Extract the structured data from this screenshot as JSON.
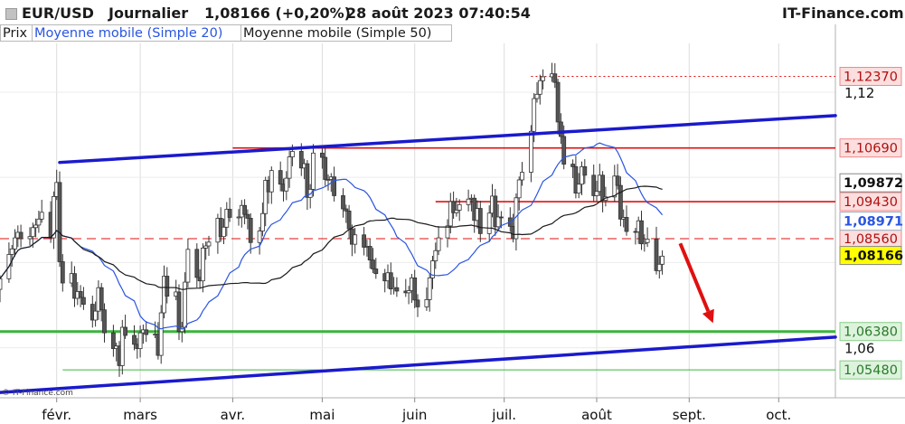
{
  "header": {
    "symbol": "EUR/USD",
    "period": "Journalier",
    "price_change": "1,08166 (+0,20%)",
    "datetime": "28 août 2023 07:40:54",
    "brand": "IT-Finance.com"
  },
  "legend": {
    "price": "Prix",
    "ma20": "Moyenne mobile (Simple 20)",
    "ma50": "Moyenne mobile (Simple 50)"
  },
  "watermark": "© IT-Finance.com",
  "colors": {
    "ma20": "#2a55e0",
    "ma50": "#1a1a1a",
    "red_level": "#e01010",
    "support_green": "#3cb43c",
    "trend_blue": "#1a1acc",
    "arrow": "#e01010",
    "last_price_bg": "#ffff00"
  },
  "chart_data": {
    "type": "candlestick",
    "pair": "EUR/USD",
    "x_axis": {
      "type": "date",
      "tick_labels": [
        "févr.",
        "mars",
        "avr.",
        "mai",
        "juin",
        "juil.",
        "août",
        "sept.",
        "oct."
      ],
      "range": [
        "2023-01-13",
        "2023-10-20"
      ]
    },
    "y_axis": {
      "range": [
        1.04825,
        1.13145
      ],
      "tick_labels": [
        "1,12",
        "1,06"
      ],
      "ticks": [
        1.12,
        1.06
      ]
    },
    "last_price": {
      "value": 1.08166,
      "label": "1,08166"
    },
    "ma20": {
      "value": 1.08971,
      "label": "1,08971"
    },
    "ma50": {
      "value": 1.09872,
      "label": "1,09872"
    },
    "levels": [
      {
        "value": 1.1237,
        "label": "1,12370",
        "style": "red-dotted"
      },
      {
        "value": 1.1069,
        "label": "1,10690",
        "style": "red-solid"
      },
      {
        "value": 1.0943,
        "label": "1,09430",
        "style": "red-solid"
      },
      {
        "value": 1.0856,
        "label": "1,08560",
        "style": "red-dashed"
      },
      {
        "value": 1.0638,
        "label": "1,06380",
        "style": "green-thick"
      },
      {
        "value": 1.0548,
        "label": "1,05480",
        "style": "green-thin"
      }
    ],
    "trendlines": [
      {
        "from": [
          "2023-02-02",
          1.1035
        ],
        "to": [
          "2023-10-20",
          1.1145
        ],
        "color": "blue"
      },
      {
        "from": [
          "2023-01-13",
          1.0495
        ],
        "to": [
          "2023-10-20",
          1.0625
        ],
        "color": "blue"
      }
    ],
    "arrow": {
      "from": [
        "2023-08-29",
        1.0845
      ],
      "to": [
        "2023-09-09",
        1.0658
      ]
    },
    "close": [
      [
        1.0762,
        1.0819,
        1.0832,
        1.0858,
        1.0871,
        1.0856,
        1.0861,
        1.0882,
        1.0888,
        1.0902,
        1.0918,
        1.0858,
        1.0955,
        1.0988,
        1.0802,
        1.0752,
        1.0774,
        1.0716,
        1.0732,
        1.0718,
        1.0702,
        1.0665,
        1.0686,
        1.0741,
        1.0689,
        1.0635,
        1.0598,
        1.0604,
        1.0558,
        1.0648,
        1.0629,
        1.0608,
        1.0598,
        1.0635,
        1.0642,
        1.0631,
        1.0632,
        1.0582,
        1.0682,
        1.0768,
        1.0721,
        1.0731,
        1.0638,
        1.0648,
        1.0754,
        1.0831,
        1.0765,
        1.0757,
        1.0834,
        1.0839,
        1.0848,
        1.0904,
        1.0861,
        1.0883,
        1.0925,
        1.0906,
        1.0907,
        1.0934,
        1.0913,
        1.0904,
        1.0847,
        1.0874,
        1.0915,
        1.0993,
        1.0966,
        1.1016,
        1.0984,
        1.0968,
        1.0998,
        1.1048,
        1.1061,
        1.1022,
        1.1032,
        1.0953,
        1.0972,
        1.1057,
        1.1047,
        1.0995,
        1.0995,
        1.1001,
        1.0957,
        1.0926,
        1.0921,
        1.0879,
        1.0843,
        1.0865,
        1.0836,
        1.0838,
        1.0806,
        1.0785,
        1.0774,
        1.0757,
        1.0776,
        1.0738,
        1.0741,
        1.0733,
        1.0729,
        1.0734,
        1.0764,
        1.0712,
        1.0696,
        1.0713,
        1.0764,
        1.0804,
        1.0828,
        1.0858,
        1.0886,
        1.0943,
        1.0917,
        1.0923,
        1.0936,
        1.0949,
        1.0951,
        1.0899,
        1.0927,
        1.0868,
        1.0916,
        1.0956,
        1.0884,
        1.0907,
        1.0905,
        1.0885,
        1.0856,
        1.0952,
        1.0994,
        1.1012,
        1.1108,
        1.1185,
        1.1195,
        1.1227,
        1.1236,
        1.1243,
        1.1223,
        1.113,
        1.1096,
        1.1031,
        1.1025,
        1.0963,
        1.0984,
        1.1025,
        1.1005,
        1.0957,
        1.0967,
        1.1005,
        1.0946,
        1.0954,
        1.1003,
        1.0981,
        1.0902,
        1.0906,
        1.0873,
        1.0872,
        1.0898,
        1.0844,
        1.0847,
        1.0855,
        1.0781,
        1.0796,
        1.0815
      ]
    ]
  }
}
